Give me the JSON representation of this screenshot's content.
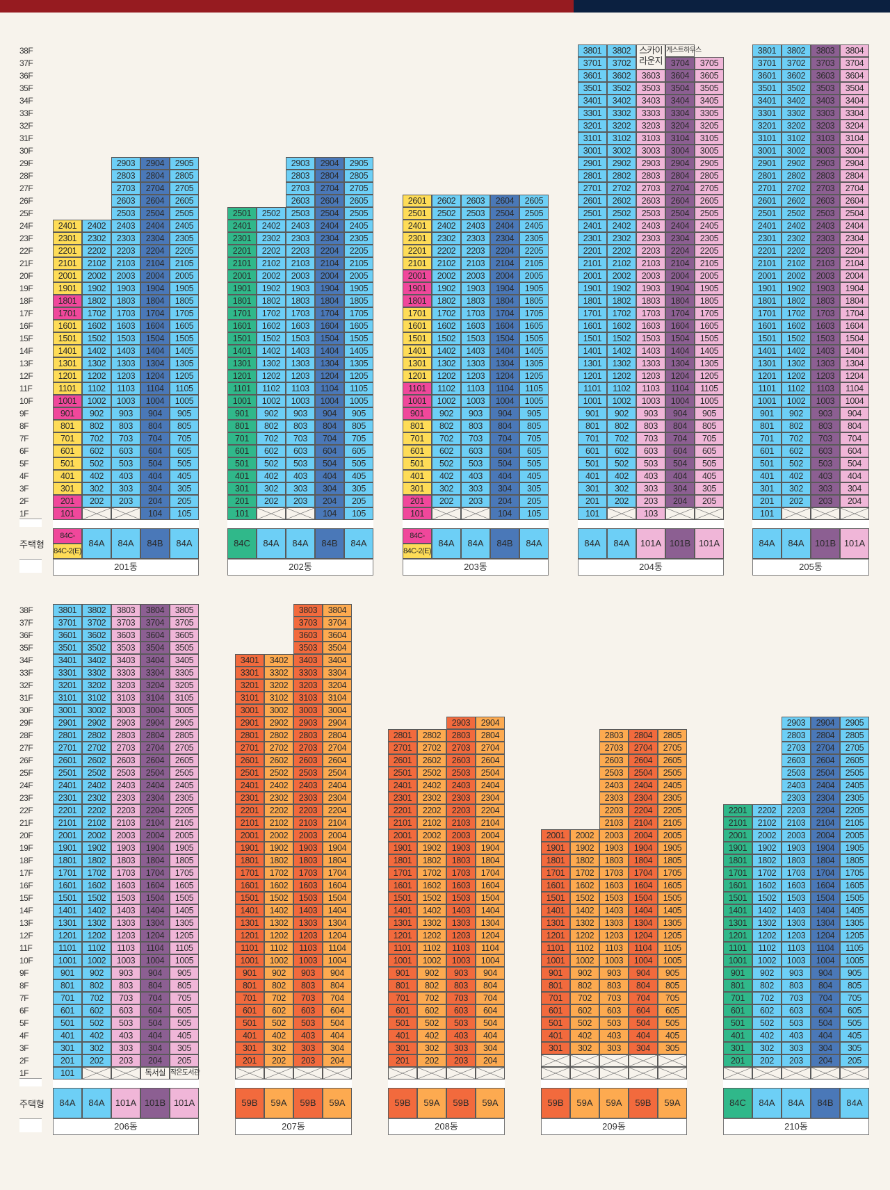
{
  "title_bar": {
    "left_color": "#961b20",
    "right_color": "#0b2040"
  },
  "colors": {
    "84A": "#6dcff6",
    "84B": "#4a78b8",
    "84C": "#30b88a",
    "84C-1(D)": "#f0479b",
    "84C-2(E)": "#fedc57",
    "101A": "#f0b6d8",
    "101B": "#8c5f92",
    "59A": "#fdaa50",
    "59B": "#f26a3d",
    "blank": "#f7f3ec"
  },
  "labels": {
    "type_row": "주택형",
    "floor_suffix": "F"
  },
  "sections": [
    {
      "max_floor": 38,
      "buildings": [
        {
          "name": "201동",
          "cols": [
            {
              "line": "01",
              "floors": [
                1,
                24
              ],
              "type": "84C",
              "split": [
                "84C-1(D)",
                "84C-2(E)"
              ],
              "pink_floors": [
                1,
                2,
                9,
                10,
                17,
                18
              ]
            },
            {
              "line": "02",
              "floors": [
                2,
                24
              ],
              "type": "84A"
            },
            {
              "line": "03",
              "floors": [
                2,
                29
              ],
              "type": "84A"
            },
            {
              "line": "04",
              "floors": [
                1,
                29
              ],
              "type": "84B"
            },
            {
              "line": "05",
              "floors": [
                1,
                29
              ],
              "type": "84A"
            }
          ]
        },
        {
          "name": "202동",
          "cols": [
            {
              "line": "01",
              "floors": [
                1,
                25
              ],
              "type": "84C"
            },
            {
              "line": "02",
              "floors": [
                2,
                25
              ],
              "type": "84A"
            },
            {
              "line": "03",
              "floors": [
                2,
                29
              ],
              "type": "84A"
            },
            {
              "line": "04",
              "floors": [
                1,
                29
              ],
              "type": "84B"
            },
            {
              "line": "05",
              "floors": [
                1,
                29
              ],
              "type": "84A"
            }
          ]
        },
        {
          "name": "203동",
          "cols": [
            {
              "line": "01",
              "floors": [
                1,
                26
              ],
              "type": "84C",
              "split": [
                "84C-1(D)",
                "84C-2(E)"
              ],
              "pink_floors": [
                1,
                2,
                9,
                10,
                11,
                18,
                19,
                20
              ]
            },
            {
              "line": "02",
              "floors": [
                2,
                26
              ],
              "type": "84A"
            },
            {
              "line": "03",
              "floors": [
                2,
                26
              ],
              "type": "84A"
            },
            {
              "line": "04",
              "floors": [
                1,
                26
              ],
              "type": "84B"
            },
            {
              "line": "05",
              "floors": [
                1,
                26
              ],
              "type": "84A"
            }
          ]
        },
        {
          "name": "204동",
          "cols": [
            {
              "line": "01",
              "floors": [
                1,
                38
              ],
              "type": "84A"
            },
            {
              "line": "02",
              "floors": [
                2,
                38
              ],
              "type": "84A"
            },
            {
              "line": "03",
              "floors": [
                1,
                36
              ],
              "type": "101A"
            },
            {
              "line": "04",
              "floors": [
                2,
                37
              ],
              "type": "101B"
            },
            {
              "line": "05",
              "floors": [
                2,
                37
              ],
              "type": "101A"
            }
          ],
          "specials": [
            {
              "text": "스카이\n라운지",
              "col": 2,
              "floors": [
                37,
                38
              ]
            },
            {
              "text": "게스트하우스",
              "col": 3,
              "floors": [
                38,
                38
              ]
            }
          ]
        },
        {
          "name": "205동",
          "cols": [
            {
              "line": "01",
              "floors": [
                1,
                38
              ],
              "type": "84A"
            },
            {
              "line": "02",
              "floors": [
                2,
                38
              ],
              "type": "84A"
            },
            {
              "line": "03",
              "floors": [
                2,
                38
              ],
              "type": "101B"
            },
            {
              "line": "04",
              "floors": [
                2,
                38
              ],
              "type": "101A"
            }
          ]
        }
      ]
    },
    {
      "max_floor": 38,
      "buildings": [
        {
          "name": "206동",
          "cols": [
            {
              "line": "01",
              "floors": [
                1,
                38
              ],
              "type": "84A"
            },
            {
              "line": "02",
              "floors": [
                2,
                38
              ],
              "type": "84A"
            },
            {
              "line": "03",
              "floors": [
                2,
                38
              ],
              "type": "101A"
            },
            {
              "line": "04",
              "floors": [
                2,
                38
              ],
              "type": "101B"
            },
            {
              "line": "05",
              "floors": [
                2,
                38
              ],
              "type": "101A"
            }
          ],
          "specials": [
            {
              "text": "독서실",
              "col": 3,
              "floors": [
                1,
                1
              ]
            },
            {
              "text": "작은도서관",
              "col": 4,
              "floors": [
                1,
                1
              ]
            }
          ]
        },
        {
          "name": "207동",
          "cols": [
            {
              "line": "01",
              "floors": [
                2,
                34
              ],
              "type": "59B"
            },
            {
              "line": "02",
              "floors": [
                2,
                34
              ],
              "type": "59A"
            },
            {
              "line": "03",
              "floors": [
                2,
                38
              ],
              "type": "59B"
            },
            {
              "line": "04",
              "floors": [
                2,
                38
              ],
              "type": "59A"
            }
          ]
        },
        {
          "name": "208동",
          "cols": [
            {
              "line": "01",
              "floors": [
                2,
                28
              ],
              "type": "59B"
            },
            {
              "line": "02",
              "floors": [
                2,
                28
              ],
              "type": "59A"
            },
            {
              "line": "03",
              "floors": [
                2,
                29
              ],
              "type": "59B"
            },
            {
              "line": "04",
              "floors": [
                2,
                29
              ],
              "type": "59A"
            }
          ]
        },
        {
          "name": "209동",
          "cols": [
            {
              "line": "01",
              "floors": [
                3,
                20
              ],
              "type": "59B"
            },
            {
              "line": "02",
              "floors": [
                3,
                20
              ],
              "type": "59A"
            },
            {
              "line": "03",
              "floors": [
                3,
                28
              ],
              "type": "59A"
            },
            {
              "line": "04",
              "floors": [
                3,
                28
              ],
              "type": "59B"
            },
            {
              "line": "05",
              "floors": [
                3,
                28
              ],
              "type": "59A"
            }
          ]
        },
        {
          "name": "210동",
          "cols": [
            {
              "line": "01",
              "floors": [
                2,
                22
              ],
              "type": "84C"
            },
            {
              "line": "02",
              "floors": [
                2,
                22
              ],
              "type": "84A"
            },
            {
              "line": "03",
              "floors": [
                2,
                29
              ],
              "type": "84A"
            },
            {
              "line": "04",
              "floors": [
                2,
                29
              ],
              "type": "84B"
            },
            {
              "line": "05",
              "floors": [
                2,
                29
              ],
              "type": "84A"
            }
          ]
        }
      ]
    }
  ]
}
